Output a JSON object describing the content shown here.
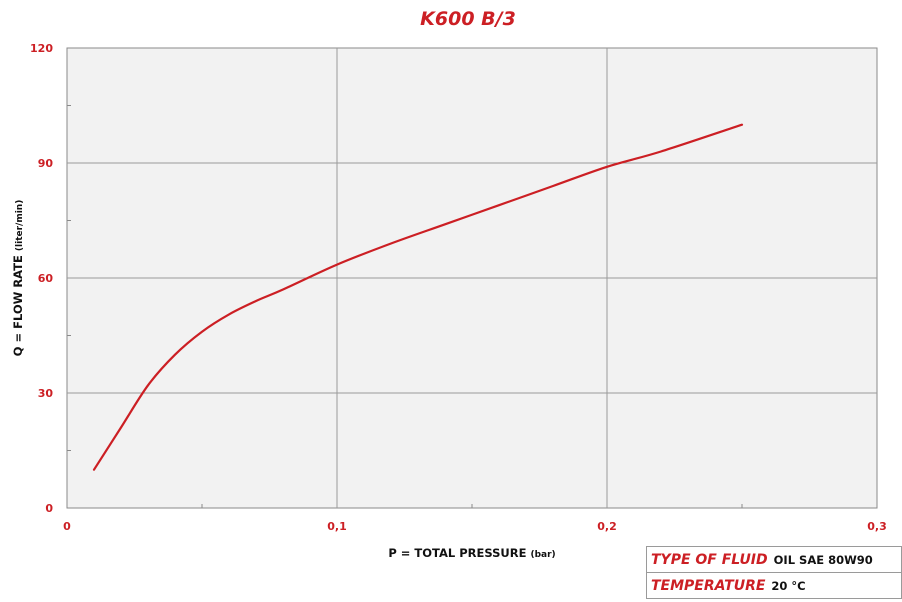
{
  "chart_data": {
    "type": "line",
    "title": "K600 B/3",
    "xlabel": "P = TOTAL PRESSURE",
    "xlabel_unit": "(bar)",
    "ylabel": "Q = FLOW RATE",
    "ylabel_unit": "(liter/min)",
    "xlim": [
      0,
      0.3
    ],
    "ylim": [
      0,
      120
    ],
    "x_ticks": [
      "0",
      "0,1",
      "0,2",
      "0,3"
    ],
    "y_ticks": [
      "0",
      "30",
      "60",
      "90",
      "120"
    ],
    "grid": true,
    "legend": "none",
    "line_color": "#cc1f24",
    "series": [
      {
        "x": [
          0.01,
          0.02,
          0.03,
          0.04,
          0.05,
          0.06,
          0.07,
          0.08,
          0.1,
          0.12,
          0.14,
          0.16,
          0.18,
          0.2,
          0.22,
          0.25
        ],
        "y": [
          10,
          21,
          32,
          40,
          46,
          50.5,
          54,
          57,
          63.5,
          69,
          74,
          79,
          84,
          89,
          93,
          100
        ]
      }
    ]
  },
  "info_table": {
    "rows": [
      {
        "key": "TYPE OF FLUID",
        "value": "OIL SAE 80W90"
      },
      {
        "key": "TEMPERATURE",
        "value": "20 °C"
      }
    ]
  }
}
